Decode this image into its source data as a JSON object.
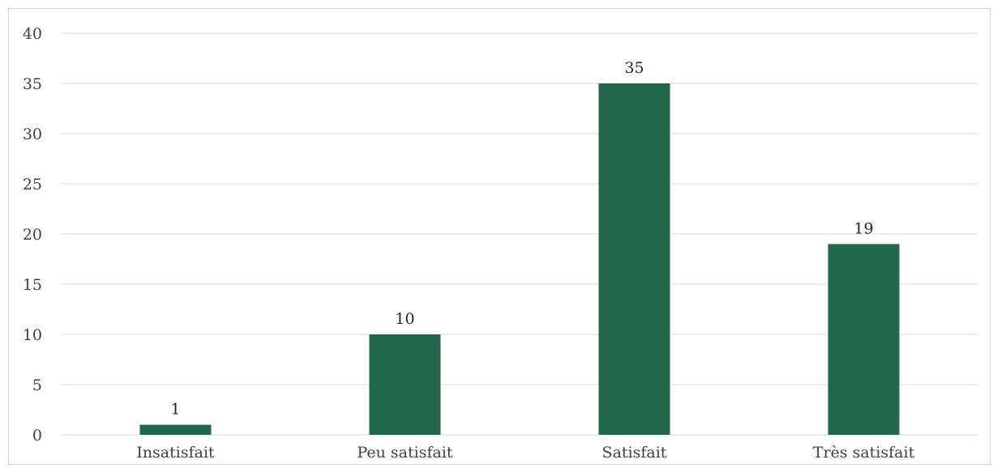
{
  "chart_data": {
    "type": "bar",
    "categories": [
      "Insatisfait",
      "Peu satisfait",
      "Satisfait",
      "Très satisfait"
    ],
    "values": [
      1,
      10,
      35,
      19
    ],
    "data_labels": [
      "1",
      "10",
      "35",
      "19"
    ],
    "ylim": [
      0,
      40
    ],
    "yticks": [
      0,
      5,
      10,
      15,
      20,
      25,
      30,
      35,
      40
    ],
    "grid": true,
    "legend": false,
    "bar_color": "#21684a",
    "grid_color": "#d9d9d9"
  }
}
